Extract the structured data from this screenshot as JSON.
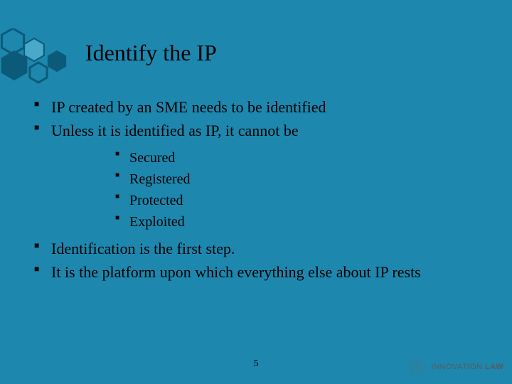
{
  "colors": {
    "background": "#1d87ae",
    "text": "#000000",
    "hex_stroke": "#0b5a7a",
    "hex_fill_light": "#4aa8c8",
    "hex_fill_dark": "#0b5a7a",
    "logo_text": "#5a5a5a",
    "logo_hex_stroke": "#3a7a95"
  },
  "title": "Identify the IP",
  "bullets_top": [
    "IP created by an SME needs to be identified",
    "Unless it is identified as IP, it cannot be"
  ],
  "sub_bullets": [
    "Secured",
    "Registered",
    "Protected",
    "Exploited"
  ],
  "bullets_bottom": [
    "Identification is the first step.",
    "It is the platform upon which everything else about IP rests"
  ],
  "page_number": "5",
  "logo": {
    "word1": "INNOVATION",
    "word2": "LAW"
  }
}
